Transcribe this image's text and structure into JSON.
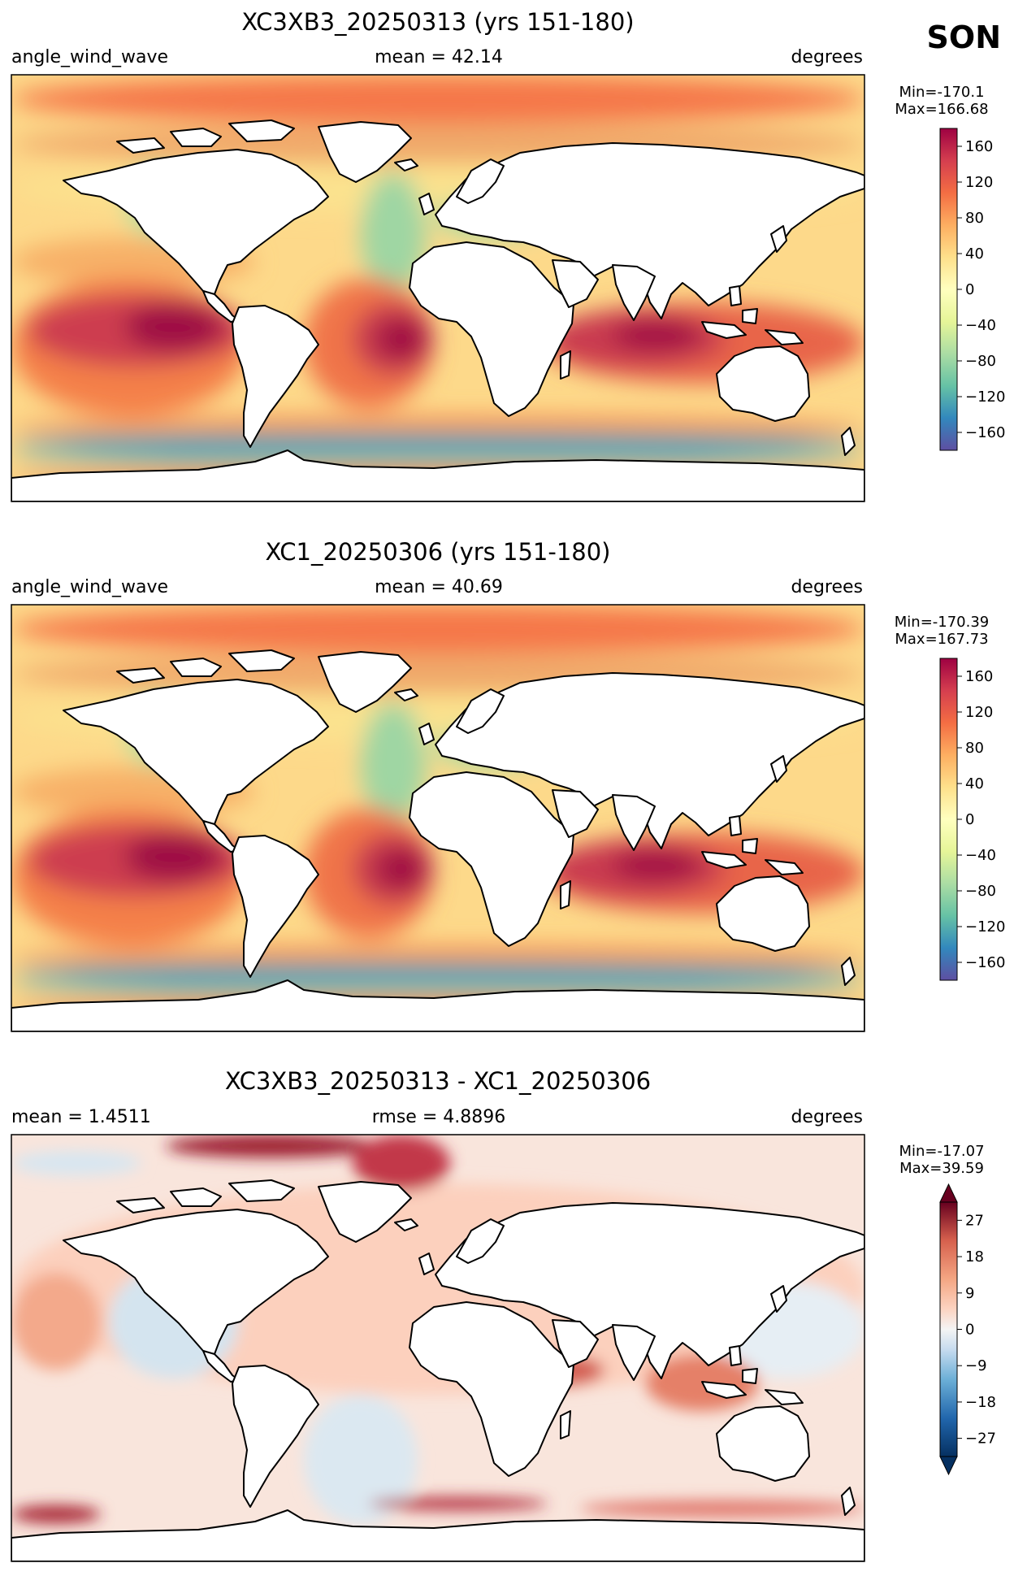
{
  "season": "SON",
  "panels": [
    {
      "title": "XC3XB3_20250313 (yrs 151-180)",
      "left_label": "angle_wind_wave",
      "center_label": "mean = 42.14",
      "right_label": "degrees",
      "minmax": [
        "Min=-170.1",
        "Max=166.68"
      ],
      "colorbar_ticks": [
        "160",
        "120",
        "80",
        "40",
        "0",
        "−40",
        "−80",
        "−120",
        "−160"
      ],
      "colormap": "Spectral_r",
      "range": [
        -180,
        180
      ]
    },
    {
      "title": "XC1_20250306 (yrs 151-180)",
      "left_label": "angle_wind_wave",
      "center_label": "mean = 40.69",
      "right_label": "degrees",
      "minmax": [
        "Min=-170.39",
        "Max=167.73"
      ],
      "colorbar_ticks": [
        "160",
        "120",
        "80",
        "40",
        "0",
        "−40",
        "−80",
        "−120",
        "−160"
      ],
      "colormap": "Spectral_r",
      "range": [
        -180,
        180
      ]
    },
    {
      "title": "XC3XB3_20250313 - XC1_20250306",
      "left_label": "mean = 1.4511",
      "center_label": "rmse = 4.8896",
      "right_label": "degrees",
      "minmax": [
        "Min=-17.07",
        "Max=39.59"
      ],
      "colorbar_ticks": [
        "27",
        "18",
        "9",
        "0",
        "−9",
        "−18",
        "−27"
      ],
      "colormap": "RdBu_r",
      "range": [
        -31.5,
        31.5
      ],
      "extend": "both"
    }
  ],
  "chart_data": {
    "type": "heatmap",
    "series": [
      {
        "name": "XC3XB3_20250313 (yrs 151-180)",
        "mean": 42.14,
        "min": -170.1,
        "max": 166.68
      },
      {
        "name": "XC1_20250306 (yrs 151-180)",
        "mean": 40.69,
        "min": -170.39,
        "max": 167.73
      },
      {
        "name": "XC3XB3_20250313 - XC1_20250306",
        "mean": 1.4511,
        "rmse": 4.8896,
        "min": -17.07,
        "max": 39.59
      }
    ]
  }
}
